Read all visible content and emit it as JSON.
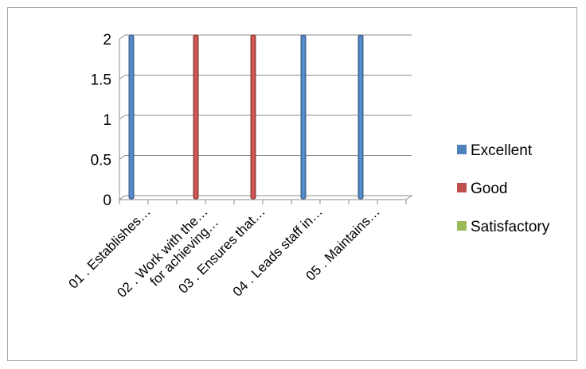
{
  "chart_data": {
    "type": "bar",
    "style": "3d-clustered-column",
    "categories": [
      "01 .  Establishes…",
      "02 .  Work with the… for achieving…",
      "03 .  Ensures that…",
      "04 .  Leads staff in…",
      "05 .  Maintains…"
    ],
    "category_lines": [
      [
        "01 .  Establishes…"
      ],
      [
        "02 .  Work with the…",
        "for achieving…"
      ],
      [
        "03 .  Ensures that…"
      ],
      [
        "04 .  Leads staff in…"
      ],
      [
        "05 .  Maintains…"
      ]
    ],
    "series": [
      {
        "name": "Excellent",
        "color": "#4f81bd",
        "values": [
          2,
          0,
          0,
          2,
          2
        ]
      },
      {
        "name": "Good",
        "color": "#c0504d",
        "values": [
          0,
          2,
          2,
          0,
          0
        ]
      },
      {
        "name": "Satisfactory",
        "color": "#9bbb59",
        "values": [
          0,
          0,
          0,
          0,
          0
        ]
      }
    ],
    "yticks": [
      "0",
      "0.5",
      "1",
      "1.5",
      "2"
    ],
    "ylim": [
      0,
      2
    ],
    "grid": true,
    "legend": "right",
    "title": "",
    "xlabel": "",
    "ylabel": ""
  }
}
